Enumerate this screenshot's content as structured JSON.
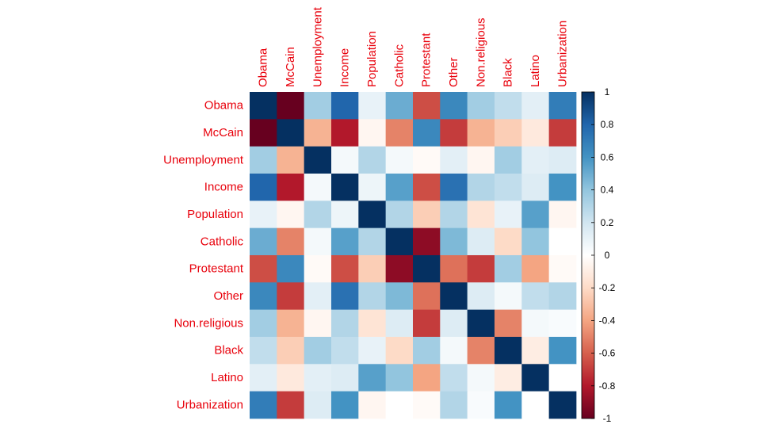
{
  "chart_data": {
    "type": "heatmap",
    "variables": [
      "Obama",
      "McCain",
      "Unemployment",
      "Income",
      "Population",
      "Catholic",
      "Protestant",
      "Other",
      "Non.religious",
      "Black",
      "Latino",
      "Urbanization"
    ],
    "matrix": [
      [
        1.0,
        -1.0,
        0.35,
        0.8,
        0.1,
        0.5,
        -0.65,
        0.65,
        0.35,
        0.25,
        0.12,
        0.7
      ],
      [
        -1.0,
        1.0,
        -0.35,
        -0.8,
        -0.05,
        -0.5,
        0.65,
        -0.7,
        -0.35,
        -0.25,
        -0.12,
        -0.7
      ],
      [
        0.35,
        -0.35,
        1.0,
        0.05,
        0.3,
        0.05,
        -0.03,
        0.12,
        -0.05,
        0.35,
        0.12,
        0.15
      ],
      [
        0.8,
        -0.8,
        0.05,
        1.0,
        0.08,
        0.55,
        -0.65,
        0.75,
        0.3,
        0.25,
        0.15,
        0.6
      ],
      [
        0.1,
        -0.05,
        0.3,
        0.08,
        1.0,
        0.3,
        -0.25,
        0.3,
        -0.15,
        0.1,
        0.55,
        -0.05
      ],
      [
        0.5,
        -0.5,
        0.05,
        0.55,
        0.3,
        1.0,
        -0.9,
        0.45,
        0.15,
        -0.2,
        0.4,
        0.0
      ],
      [
        -0.65,
        0.65,
        -0.03,
        -0.65,
        -0.25,
        -0.9,
        1.0,
        -0.55,
        -0.7,
        0.35,
        -0.4,
        -0.03
      ],
      [
        0.65,
        -0.7,
        0.12,
        0.75,
        0.3,
        0.45,
        -0.55,
        1.0,
        0.15,
        0.05,
        0.25,
        0.3
      ],
      [
        0.35,
        -0.35,
        -0.05,
        0.3,
        -0.15,
        0.15,
        -0.7,
        0.15,
        1.0,
        -0.5,
        0.05,
        0.03
      ],
      [
        0.25,
        -0.25,
        0.35,
        0.25,
        0.1,
        -0.2,
        0.35,
        0.05,
        -0.5,
        1.0,
        -0.1,
        0.6
      ],
      [
        0.12,
        -0.12,
        0.12,
        0.15,
        0.55,
        0.4,
        -0.4,
        0.25,
        0.05,
        -0.1,
        1.0,
        0.0
      ],
      [
        0.7,
        -0.7,
        0.15,
        0.6,
        -0.05,
        0.0,
        -0.03,
        0.3,
        0.03,
        0.6,
        0.0,
        1.0
      ]
    ],
    "colorbar": {
      "min": -1,
      "max": 1,
      "ticks": [
        -1,
        -0.8,
        -0.6,
        -0.4,
        -0.2,
        0,
        0.2,
        0.4,
        0.6,
        0.8,
        1
      ],
      "tick_labels": [
        "-1",
        "-0.8",
        "-0.6",
        "-0.4",
        "-0.2",
        "0",
        "0.2",
        "0.4",
        "0.6",
        "0.8",
        "1"
      ]
    },
    "colors": {
      "label": "#e8000b",
      "scale": [
        "#67001f",
        "#b2182b",
        "#d6604d",
        "#f4a582",
        "#fddbc7",
        "#ffffff",
        "#d1e5f0",
        "#92c5de",
        "#4393c3",
        "#2166ac",
        "#053061"
      ]
    }
  }
}
